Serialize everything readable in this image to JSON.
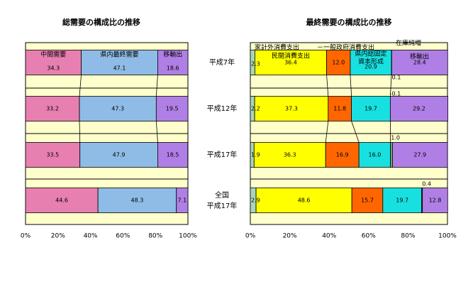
{
  "chart_data": [
    {
      "type": "bar",
      "orientation": "horizontal",
      "stacked": "percent",
      "title": "総需要の構成比の推移",
      "categories": [
        "平成7年",
        "平成12年",
        "平成17年",
        "全国\n平成17年"
      ],
      "series": [
        {
          "name": "中間需要",
          "values": [
            34.3,
            33.2,
            33.5,
            44.6
          ],
          "color": "#e77fb1"
        },
        {
          "name": "県内最終需要",
          "values": [
            47.1,
            47.3,
            47.9,
            48.3
          ],
          "color": "#8fbce6"
        },
        {
          "name": "移輸出",
          "values": [
            18.6,
            19.5,
            18.5,
            7.1
          ],
          "color": "#b07fe6"
        }
      ],
      "xlim": [
        0,
        100
      ],
      "xticks": [
        "0%",
        "20%",
        "40%",
        "60%",
        "80%",
        "100%"
      ],
      "background": "#ffffcc"
    },
    {
      "type": "bar",
      "orientation": "horizontal",
      "stacked": "percent",
      "title": "最終需要の構成比の推移",
      "categories": [
        "平成7年",
        "平成12年",
        "平成17年",
        "全国\n平成17年"
      ],
      "series": [
        {
          "name": "家計外消費支出",
          "values": [
            2.3,
            2.2,
            1.9,
            2.9
          ],
          "color": "#a9d6b8"
        },
        {
          "name": "民間消費支出",
          "values": [
            36.4,
            37.3,
            36.3,
            48.6
          ],
          "color": "#ffff00"
        },
        {
          "name": "一般政府消費支出",
          "values": [
            12.0,
            11.8,
            16.9,
            15.7
          ],
          "color": "#ff6600"
        },
        {
          "name": "県内総固定資本形成",
          "values": [
            20.9,
            19.7,
            16.0,
            19.7
          ],
          "color": "#19e0e0"
        },
        {
          "name": "在庫純増",
          "values": [
            0.1,
            -0.1,
            1.0,
            0.4
          ],
          "color": "#6fa96f"
        },
        {
          "name": "移輸出",
          "values": [
            28.4,
            29.2,
            27.9,
            12.8
          ],
          "color": "#b07fe6"
        }
      ],
      "xlim": [
        0,
        100
      ],
      "xticks": [
        "0%",
        "20%",
        "40%",
        "60%",
        "80%",
        "100%"
      ],
      "background": "#ffffcc"
    }
  ]
}
